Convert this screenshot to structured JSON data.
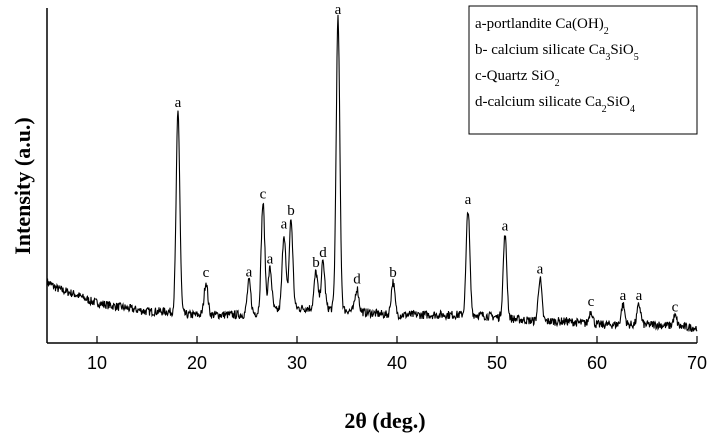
{
  "chart_data": {
    "type": "line",
    "xlabel": "2θ (deg.)",
    "ylabel": "Intensity (a.u.)",
    "xlim": [
      5,
      70
    ],
    "ylim": [
      0,
      100
    ],
    "x_ticks": [
      10,
      20,
      30,
      40,
      50,
      60,
      70
    ],
    "y_ticks_shown": false,
    "grid": false,
    "legend_placement": "top-right",
    "legend": [
      {
        "text": "a-portlandite Ca(OH)",
        "sub": "2",
        "tail": ""
      },
      {
        "text": "b- calcium silicate Ca",
        "sub": "3",
        "tail": "SiO",
        "sub2": "5"
      },
      {
        "text": "c-Quartz SiO",
        "sub": "2",
        "tail": ""
      },
      {
        "text": "d-calcium silicate Ca",
        "sub": "2",
        "tail": "SiO",
        "sub2": "4"
      }
    ],
    "series": [
      {
        "color": "#000000",
        "baseline": [
          [
            5,
            14
          ],
          [
            6,
            12
          ],
          [
            7,
            11
          ],
          [
            8,
            10
          ],
          [
            9.5,
            8
          ],
          [
            11,
            7
          ],
          [
            13,
            6
          ],
          [
            15,
            5
          ],
          [
            17,
            5
          ],
          [
            19,
            4
          ],
          [
            21,
            4
          ],
          [
            23,
            4
          ],
          [
            25,
            4
          ],
          [
            27,
            5
          ],
          [
            30,
            6
          ],
          [
            33,
            6
          ],
          [
            36,
            5
          ],
          [
            39,
            4
          ],
          [
            42,
            4
          ],
          [
            45,
            4
          ],
          [
            48,
            4
          ],
          [
            51,
            3
          ],
          [
            54,
            2
          ],
          [
            57,
            2
          ],
          [
            60,
            1
          ],
          [
            63,
            1
          ],
          [
            66,
            1
          ],
          [
            70,
            0
          ]
        ],
        "peaks": [
          {
            "x": 18.1,
            "y": 61,
            "label": "a"
          },
          {
            "x": 20.9,
            "y": 10,
            "label": "c"
          },
          {
            "x": 25.2,
            "y": 10,
            "label": "a"
          },
          {
            "x": 26.6,
            "y": 33,
            "label": "c"
          },
          {
            "x": 27.3,
            "y": 13,
            "label": "a"
          },
          {
            "x": 28.7,
            "y": 23,
            "label": "a"
          },
          {
            "x": 29.4,
            "y": 27,
            "label": "b"
          },
          {
            "x": 31.9,
            "y": 11,
            "label": "b"
          },
          {
            "x": 32.6,
            "y": 14,
            "label": "d"
          },
          {
            "x": 34.1,
            "y": 88,
            "label": "a"
          },
          {
            "x": 36.0,
            "y": 7,
            "label": "d"
          },
          {
            "x": 39.6,
            "y": 10,
            "label": "b"
          },
          {
            "x": 47.1,
            "y": 32,
            "label": "a"
          },
          {
            "x": 50.8,
            "y": 25,
            "label": "a"
          },
          {
            "x": 54.3,
            "y": 13,
            "label": "a"
          },
          {
            "x": 59.4,
            "y": 4,
            "label": "c"
          },
          {
            "x": 62.6,
            "y": 6,
            "label": "a"
          },
          {
            "x": 64.2,
            "y": 6,
            "label": "a"
          },
          {
            "x": 67.8,
            "y": 3,
            "label": "c"
          }
        ]
      }
    ]
  }
}
